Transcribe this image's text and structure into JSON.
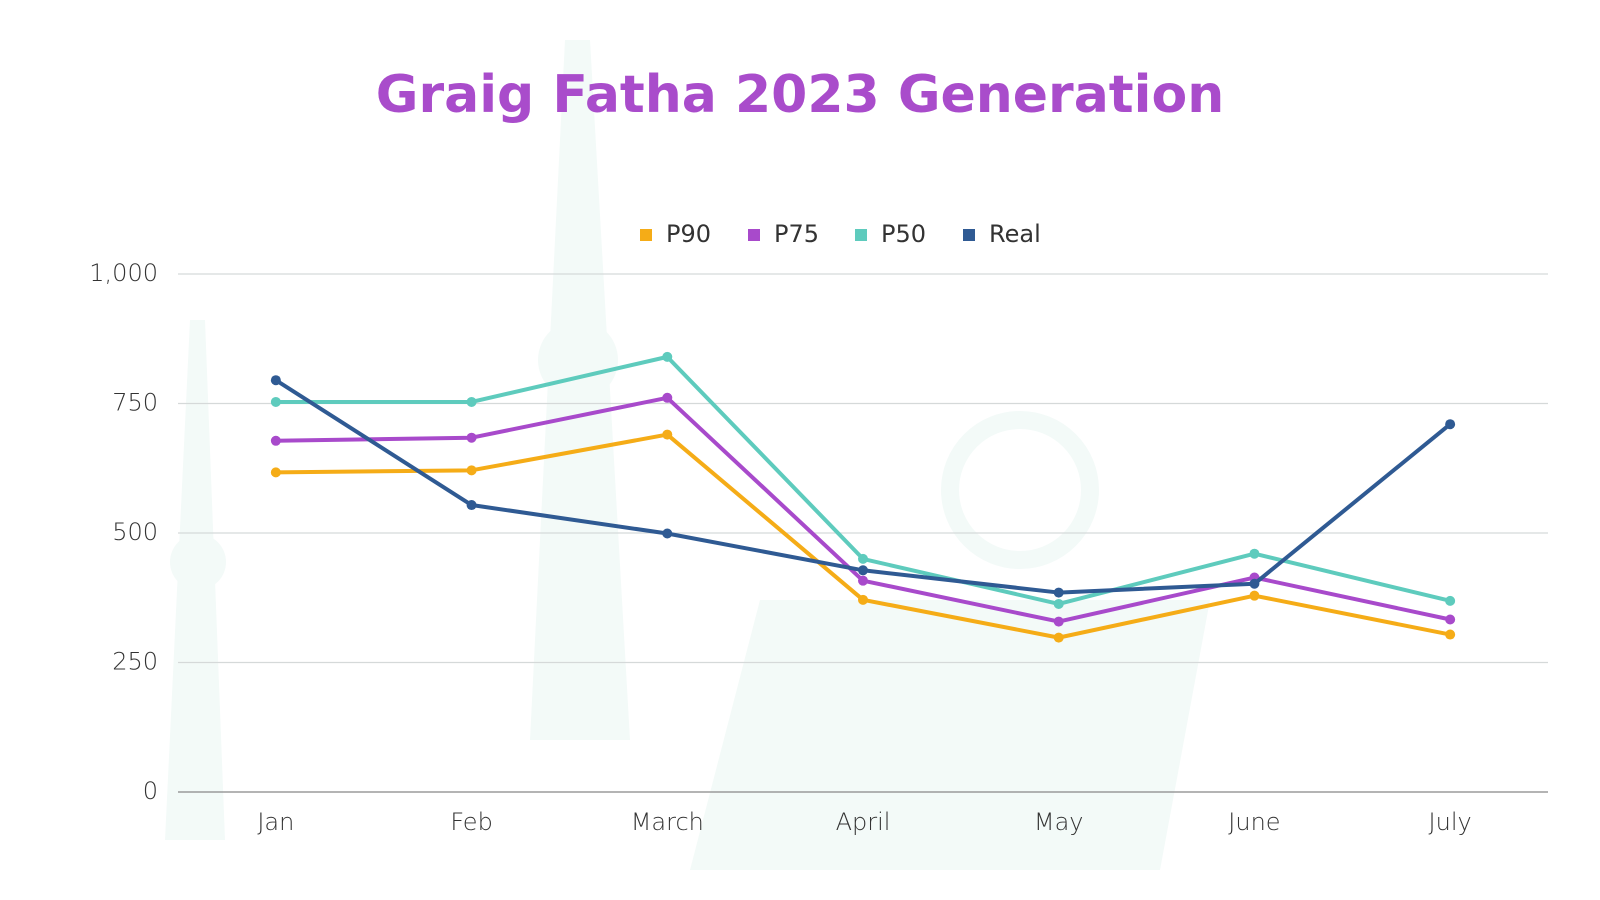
{
  "chart_data": {
    "type": "line",
    "title": "Graig Fatha 2023 Generation",
    "categories": [
      "Jan",
      "Feb",
      "March",
      "April",
      "May",
      "June",
      "July"
    ],
    "series": [
      {
        "name": "P90",
        "color": "#f5ac17",
        "values": [
          617,
          621,
          690,
          371,
          298,
          379,
          304
        ]
      },
      {
        "name": "P75",
        "color": "#a84acb",
        "values": [
          678,
          684,
          761,
          408,
          329,
          414,
          333
        ]
      },
      {
        "name": "P50",
        "color": "#5ecbbd",
        "values": [
          753,
          753,
          840,
          450,
          363,
          460,
          369
        ]
      },
      {
        "name": "Real",
        "color": "#2f5a93",
        "values": [
          795,
          554,
          499,
          428,
          385,
          402,
          710
        ]
      }
    ],
    "ylim": [
      0,
      1000
    ],
    "yticks": [
      0,
      250,
      500,
      750,
      {
        "value": 1000,
        "label": "1,000"
      }
    ],
    "grid": true,
    "legend": "top"
  }
}
